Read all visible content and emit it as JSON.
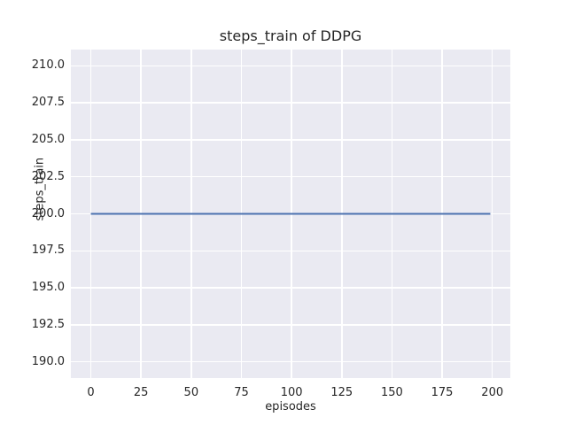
{
  "chart_data": {
    "type": "line",
    "title": "steps_train of DDPG",
    "xlabel": "episodes",
    "ylabel": "steps_train",
    "x_ticks": {
      "values": [
        0,
        25,
        50,
        75,
        100,
        125,
        150,
        175,
        200
      ],
      "labels": [
        "0",
        "25",
        "50",
        "75",
        "100",
        "125",
        "150",
        "175",
        "200"
      ]
    },
    "y_ticks": {
      "values": [
        190,
        192.5,
        195,
        197.5,
        200,
        202.5,
        205,
        207.5,
        210
      ],
      "labels": [
        "190.0",
        "192.5",
        "195.0",
        "197.5",
        "200.0",
        "202.5",
        "205.0",
        "207.5",
        "210.0"
      ]
    },
    "xlim": [
      -9.95,
      208.95
    ],
    "ylim": [
      188.9,
      211.1
    ],
    "grid": true,
    "legend": "none",
    "series": [
      {
        "name": "steps_train",
        "color": "#4C72B0",
        "line_width": 2,
        "x": [
          0,
          199
        ],
        "y": [
          200,
          200
        ]
      }
    ],
    "colors": {
      "figure_bg": "#FFFFFF",
      "plot_bg": "#EAEAF2",
      "grid": "#FFFFFF",
      "text": "#262626"
    }
  }
}
